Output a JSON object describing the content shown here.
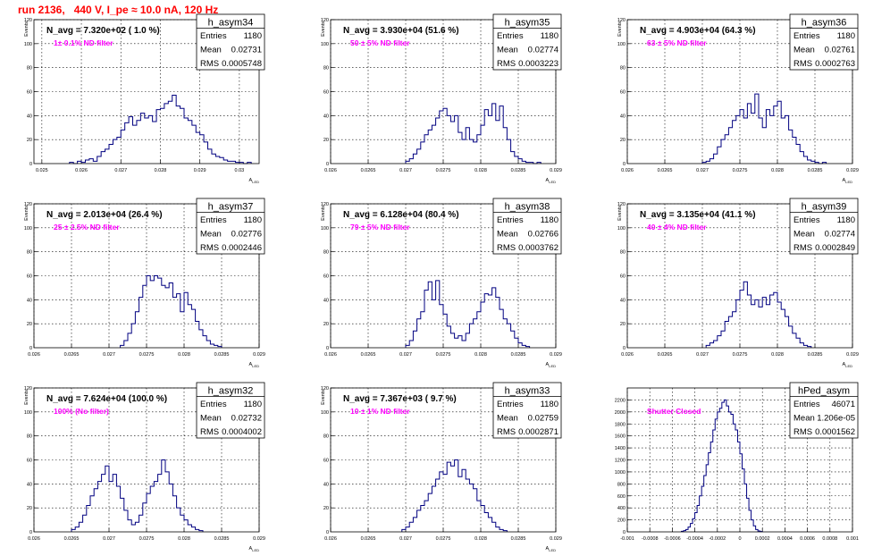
{
  "run_title": "run 2136,   440 V, I_pe ≈ 10.0 nA, 120 Hz",
  "chart_data": [
    {
      "type": "bar",
      "name": "h_asym34",
      "navg": "N_avg = 7.320e+02 ( 1.0 %)",
      "filter": "1± 0.1% ND filter",
      "ylabel": "Events",
      "xlabel": "A_LED",
      "stats": {
        "entries_label": "Entries",
        "entries": "1180",
        "mean_label": "Mean",
        "mean": "0.02731",
        "rms_label": "RMS",
        "rms": "0.0005748"
      },
      "xlim": [
        0.0248,
        0.0305
      ],
      "ylim": [
        0,
        120
      ],
      "xticks": [
        0.025,
        0.026,
        0.027,
        0.028,
        0.029,
        0.03
      ],
      "xtick_labels": [
        "0.025",
        "0.026",
        "0.027",
        "0.028",
        "0.029",
        "0.03"
      ],
      "yticks": [
        20,
        40,
        60,
        80,
        100,
        120
      ],
      "ytick_labels": [
        "20",
        "40",
        "60",
        "80",
        "100",
        "120"
      ],
      "hist": {
        "x0": 0.0257,
        "dx": 0.0001,
        "counts": [
          1,
          0,
          2,
          1,
          3,
          4,
          2,
          6,
          10,
          12,
          16,
          20,
          22,
          28,
          34,
          39,
          32,
          36,
          42,
          38,
          40,
          35,
          45,
          46,
          50,
          52,
          57,
          48,
          46,
          38,
          36,
          32,
          26,
          24,
          18,
          12,
          8,
          6,
          5,
          3,
          2,
          2,
          1,
          1,
          0,
          1
        ]
      }
    },
    {
      "type": "bar",
      "name": "h_asym35",
      "navg": "N_avg = 3.930e+04 (51.6 %)",
      "filter": "50 ± 5% ND filter",
      "ylabel": "Events",
      "xlabel": "A_LED",
      "stats": {
        "entries_label": "Entries",
        "entries": "1180",
        "mean_label": "Mean",
        "mean": "0.02774",
        "rms_label": "RMS",
        "rms": "0.0003223"
      },
      "xlim": [
        0.026,
        0.029
      ],
      "ylim": [
        0,
        120
      ],
      "xticks": [
        0.026,
        0.0265,
        0.027,
        0.0275,
        0.028,
        0.0285,
        0.029
      ],
      "xtick_labels": [
        "0.026",
        "0.0265",
        "0.027",
        "0.0275",
        "0.028",
        "0.0285",
        "0.029"
      ],
      "yticks": [
        20,
        40,
        60,
        80,
        100,
        120
      ],
      "ytick_labels": [
        "20",
        "40",
        "60",
        "80",
        "100",
        "120"
      ],
      "hist": {
        "x0": 0.027,
        "dx": 5e-05,
        "counts": [
          2,
          4,
          8,
          12,
          18,
          24,
          28,
          32,
          38,
          44,
          46,
          40,
          35,
          40,
          26,
          20,
          30,
          20,
          18,
          24,
          32,
          45,
          40,
          50,
          36,
          48,
          30,
          20,
          10,
          6,
          4,
          2,
          1,
          1,
          0,
          1
        ]
      }
    },
    {
      "type": "bar",
      "name": "h_asym36",
      "navg": "N_avg = 4.903e+04 (64.3 %)",
      "filter": "63 ± 5% ND filter",
      "ylabel": "Events",
      "xlabel": "A_LED",
      "stats": {
        "entries_label": "Entries",
        "entries": "1180",
        "mean_label": "Mean",
        "mean": "0.02761",
        "rms_label": "RMS",
        "rms": "0.0002763"
      },
      "xlim": [
        0.026,
        0.029
      ],
      "ylim": [
        0,
        120
      ],
      "xticks": [
        0.026,
        0.0265,
        0.027,
        0.0275,
        0.028,
        0.0285,
        0.029
      ],
      "xtick_labels": [
        "0.026",
        "0.0265",
        "0.027",
        "0.0275",
        "0.028",
        "0.0285",
        "0.029"
      ],
      "yticks": [
        20,
        40,
        60,
        80,
        100,
        120
      ],
      "ytick_labels": [
        "20",
        "40",
        "60",
        "80",
        "100",
        "120"
      ],
      "hist": {
        "x0": 0.027,
        "dx": 5e-05,
        "counts": [
          1,
          2,
          4,
          8,
          14,
          20,
          24,
          30,
          36,
          40,
          45,
          38,
          50,
          42,
          58,
          38,
          30,
          45,
          40,
          48,
          52,
          38,
          40,
          28,
          22,
          16,
          10,
          6,
          3,
          2,
          1,
          0,
          1
        ]
      }
    },
    {
      "type": "bar",
      "name": "h_asym37",
      "navg": "N_avg = 2.013e+04 (26.4 %)",
      "filter": "25 ± 2.5% ND filter",
      "ylabel": "Events",
      "xlabel": "A_LED",
      "stats": {
        "entries_label": "Entries",
        "entries": "1180",
        "mean_label": "Mean",
        "mean": "0.02776",
        "rms_label": "RMS",
        "rms": "0.0002446"
      },
      "xlim": [
        0.026,
        0.029
      ],
      "ylim": [
        0,
        120
      ],
      "xticks": [
        0.026,
        0.0265,
        0.027,
        0.0275,
        0.028,
        0.0285,
        0.029
      ],
      "xtick_labels": [
        "0.026",
        "0.0265",
        "0.027",
        "0.0275",
        "0.028",
        "0.0285",
        "0.029"
      ],
      "yticks": [
        20,
        40,
        60,
        80,
        100,
        120
      ],
      "ytick_labels": [
        "20",
        "40",
        "60",
        "80",
        "100",
        "120"
      ],
      "hist": {
        "x0": 0.02715,
        "dx": 5e-05,
        "counts": [
          2,
          6,
          12,
          20,
          30,
          42,
          52,
          60,
          56,
          60,
          58,
          52,
          50,
          54,
          42,
          45,
          30,
          46,
          36,
          32,
          22,
          15,
          10,
          6,
          3,
          2,
          1
        ]
      }
    },
    {
      "type": "bar",
      "name": "h_asym38",
      "navg": "N_avg = 6.128e+04 (80.4 %)",
      "filter": "79 ± 5% ND filter",
      "ylabel": "Events",
      "xlabel": "A_LED",
      "stats": {
        "entries_label": "Entries",
        "entries": "1180",
        "mean_label": "Mean",
        "mean": "0.02766",
        "rms_label": "RMS",
        "rms": "0.0003762"
      },
      "xlim": [
        0.026,
        0.029
      ],
      "ylim": [
        0,
        120
      ],
      "xticks": [
        0.026,
        0.0265,
        0.027,
        0.0275,
        0.028,
        0.0285,
        0.029
      ],
      "xtick_labels": [
        "0.026",
        "0.0265",
        "0.027",
        "0.0275",
        "0.028",
        "0.0285",
        "0.029"
      ],
      "yticks": [
        20,
        40,
        60,
        80,
        100,
        120
      ],
      "ytick_labels": [
        "20",
        "40",
        "60",
        "80",
        "100",
        "120"
      ],
      "hist": {
        "x0": 0.027,
        "dx": 5e-05,
        "counts": [
          2,
          6,
          14,
          24,
          30,
          48,
          55,
          40,
          56,
          36,
          28,
          18,
          12,
          8,
          10,
          6,
          12,
          20,
          24,
          30,
          38,
          45,
          44,
          50,
          42,
          32,
          24,
          20,
          14,
          8,
          4,
          2,
          1
        ]
      }
    },
    {
      "type": "bar",
      "name": "h_asym39",
      "navg": "N_avg = 3.135e+04 (41.1 %)",
      "filter": "40 ± 4% ND filter",
      "ylabel": "Events",
      "xlabel": "A_LED",
      "stats": {
        "entries_label": "Entries",
        "entries": "1180",
        "mean_label": "Mean",
        "mean": "0.02774",
        "rms_label": "RMS",
        "rms": "0.0002849"
      },
      "xlim": [
        0.026,
        0.029
      ],
      "ylim": [
        0,
        120
      ],
      "xticks": [
        0.026,
        0.0265,
        0.027,
        0.0275,
        0.028,
        0.0285,
        0.029
      ],
      "xtick_labels": [
        "0.026",
        "0.0265",
        "0.027",
        "0.0275",
        "0.028",
        "0.0285",
        "0.029"
      ],
      "yticks": [
        20,
        40,
        60,
        80,
        100,
        120
      ],
      "ytick_labels": [
        "20",
        "40",
        "60",
        "80",
        "100",
        "120"
      ],
      "hist": {
        "x0": 0.02705,
        "dx": 5e-05,
        "counts": [
          2,
          4,
          6,
          10,
          14,
          22,
          26,
          30,
          40,
          48,
          55,
          44,
          36,
          40,
          34,
          42,
          36,
          44,
          46,
          38,
          32,
          26,
          18,
          12,
          8,
          4,
          2,
          1
        ]
      }
    },
    {
      "type": "bar",
      "name": "h_asym32",
      "navg": "N_avg = 7.624e+04 (100.0 %)",
      "filter": "100% (No filter)",
      "ylabel": "Events",
      "xlabel": "A_LED",
      "stats": {
        "entries_label": "Entries",
        "entries": "1180",
        "mean_label": "Mean",
        "mean": "0.02732",
        "rms_label": "RMS",
        "rms": "0.0004002"
      },
      "xlim": [
        0.026,
        0.029
      ],
      "ylim": [
        0,
        120
      ],
      "xticks": [
        0.026,
        0.0265,
        0.027,
        0.0275,
        0.028,
        0.0285,
        0.029
      ],
      "xtick_labels": [
        "0.026",
        "0.0265",
        "0.027",
        "0.0275",
        "0.028",
        "0.0285",
        "0.029"
      ],
      "yticks": [
        20,
        40,
        60,
        80,
        100,
        120
      ],
      "ytick_labels": [
        "20",
        "40",
        "60",
        "80",
        "100",
        "120"
      ],
      "hist": {
        "x0": 0.0265,
        "dx": 5e-05,
        "counts": [
          2,
          4,
          8,
          14,
          22,
          30,
          36,
          42,
          48,
          55,
          42,
          48,
          38,
          28,
          18,
          10,
          6,
          8,
          14,
          24,
          32,
          38,
          42,
          48,
          60,
          50,
          40,
          30,
          20,
          14,
          10,
          6,
          4,
          2,
          1
        ]
      }
    },
    {
      "type": "bar",
      "name": "h_asym33",
      "navg": "N_avg = 7.367e+03 ( 9.7 %)",
      "filter": "10 ± 1% ND filter",
      "ylabel": "Events",
      "xlabel": "A_LED",
      "stats": {
        "entries_label": "Entries",
        "entries": "1180",
        "mean_label": "Mean",
        "mean": "0.02759",
        "rms_label": "RMS",
        "rms": "0.0002871"
      },
      "xlim": [
        0.026,
        0.029
      ],
      "ylim": [
        0,
        120
      ],
      "xticks": [
        0.026,
        0.0265,
        0.027,
        0.0275,
        0.028,
        0.0285,
        0.029
      ],
      "xtick_labels": [
        "0.026",
        "0.0265",
        "0.027",
        "0.0275",
        "0.028",
        "0.0285",
        "0.029"
      ],
      "yticks": [
        20,
        40,
        60,
        80,
        100,
        120
      ],
      "ytick_labels": [
        "20",
        "40",
        "60",
        "80",
        "100",
        "120"
      ],
      "hist": {
        "x0": 0.02695,
        "dx": 5e-05,
        "counts": [
          2,
          4,
          8,
          12,
          18,
          22,
          26,
          32,
          38,
          44,
          50,
          48,
          58,
          55,
          60,
          46,
          52,
          44,
          40,
          36,
          26,
          22,
          16,
          12,
          8,
          4,
          2,
          1
        ]
      }
    },
    {
      "type": "bar",
      "name": "hPed_asym",
      "navg": "",
      "filter": "Shutter Closed",
      "ylabel": "",
      "xlabel": "",
      "stats": {
        "entries_label": "Entries",
        "entries": "46071",
        "mean_label": "Mean",
        "mean": "1.206e-05",
        "rms_label": "RMS",
        "rms": "0.0001562"
      },
      "xlim": [
        -0.001,
        0.001
      ],
      "ylim": [
        0,
        2400
      ],
      "xticks": [
        -0.001,
        -0.0008,
        -0.0006,
        -0.0004,
        -0.0002,
        0,
        0.0002,
        0.0004,
        0.0006,
        0.0008,
        0.001
      ],
      "xtick_labels": [
        "-0.001",
        "-0.0008",
        "-0.0006",
        "-0.0004",
        "-0.0002",
        "0",
        "0.0002",
        "0.0004",
        "0.0006",
        "0.0008",
        "0.001"
      ],
      "yticks": [
        200,
        400,
        600,
        800,
        1000,
        1200,
        1400,
        1600,
        1800,
        2000,
        2200
      ],
      "ytick_labels": [
        "200",
        "400",
        "600",
        "800",
        "1000",
        "1200",
        "1400",
        "1600",
        "1800",
        "2000",
        "2200"
      ],
      "hist": {
        "x0": -0.00052,
        "dx": 2e-05,
        "counts": [
          10,
          20,
          40,
          80,
          140,
          220,
          320,
          440,
          600,
          760,
          940,
          1120,
          1320,
          1500,
          1700,
          1880,
          2000,
          2060,
          2160,
          2200,
          2100,
          2000,
          1960,
          1800,
          1700,
          1500,
          1300,
          1050,
          800,
          560,
          360,
          200,
          100,
          40,
          15,
          5
        ]
      }
    }
  ]
}
